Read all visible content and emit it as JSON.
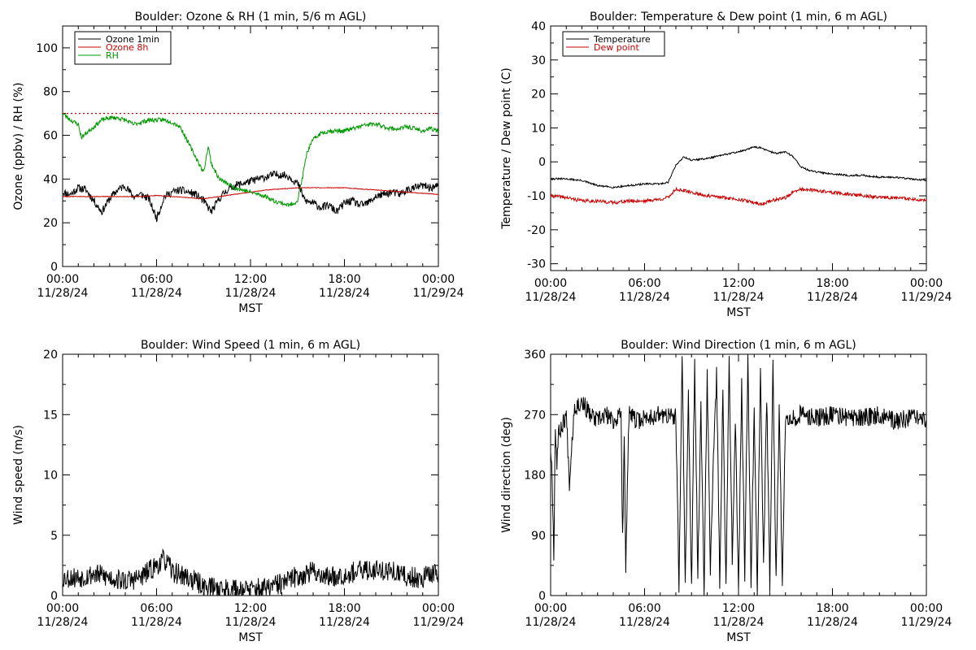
{
  "chart_data": [
    {
      "type": "line",
      "title": "Boulder: Ozone & RH (1 min, 5/6 m AGL)",
      "xlabel": "MST",
      "ylabel": "Ozone (ppbv) / RH (%)",
      "xlim": [
        0,
        24
      ],
      "ylim": [
        0,
        110
      ],
      "yticks": [
        0,
        20,
        40,
        60,
        80,
        100
      ],
      "xtick_labels": [
        [
          "00:00",
          "11/28/24"
        ],
        [
          "06:00",
          "11/28/24"
        ],
        [
          "12:00",
          "11/28/24"
        ],
        [
          "18:00",
          "11/28/24"
        ],
        [
          "00:00",
          "11/29/24"
        ]
      ],
      "legend_position": "top-left",
      "reference_lines": [
        {
          "y": 70,
          "color": "#cc0000",
          "style": "dotted"
        }
      ],
      "series": [
        {
          "name": "Ozone 1min",
          "color": "#000000",
          "noise": 1.8,
          "seed": 11,
          "x": [
            0,
            0.5,
            1,
            1.5,
            2,
            2.5,
            3,
            3.5,
            4,
            4.5,
            5,
            5.5,
            6,
            6.5,
            7,
            7.5,
            8,
            8.5,
            9,
            9.5,
            10,
            10.5,
            11,
            11.5,
            12,
            12.5,
            13,
            13.5,
            14,
            14.5,
            15,
            15.5,
            16,
            16.5,
            17,
            17.5,
            18,
            18.5,
            19,
            19.5,
            20,
            20.5,
            21,
            21.5,
            22,
            22.5,
            23,
            23.5,
            24
          ],
          "y": [
            34,
            33,
            36,
            35,
            30,
            25,
            31,
            35,
            37,
            32,
            33,
            31,
            22,
            32,
            34,
            35,
            34,
            33,
            30,
            25,
            31,
            35,
            37,
            38,
            39,
            40,
            41,
            42,
            42,
            41,
            38,
            30,
            29,
            27,
            28,
            25,
            29,
            30,
            28,
            29,
            32,
            33,
            34,
            33,
            35,
            36,
            37,
            36,
            37
          ]
        },
        {
          "name": "Ozone 8h",
          "color": "#cc0000",
          "noise": 0.15,
          "seed": 5,
          "x": [
            0,
            1,
            2,
            3,
            4,
            5,
            6,
            7,
            8,
            9,
            10,
            11,
            12,
            13,
            14,
            15,
            16,
            17,
            18,
            19,
            20,
            21,
            22,
            23,
            24
          ],
          "y": [
            32,
            32,
            32,
            32,
            32,
            32,
            32.5,
            32,
            31.5,
            31,
            32,
            33,
            34,
            35,
            35.5,
            36,
            36,
            36,
            36,
            35.5,
            35,
            34.5,
            34,
            33.5,
            33
          ]
        },
        {
          "name": "RH",
          "color": "#009900",
          "noise": 1.0,
          "seed": 23,
          "x": [
            0,
            0.5,
            1,
            1.2,
            1.5,
            2,
            2.5,
            3,
            3.5,
            4,
            4.5,
            5,
            5.5,
            6,
            6.5,
            7,
            7.5,
            8,
            8.5,
            9,
            9.3,
            9.5,
            10,
            10.5,
            11,
            11.5,
            12,
            12.5,
            13,
            13.5,
            14,
            14.5,
            15,
            15.3,
            15.6,
            16,
            16.5,
            17,
            17.5,
            18,
            18.5,
            19,
            19.5,
            20,
            20.5,
            21,
            21.5,
            22,
            22.5,
            23,
            23.5,
            24
          ],
          "y": [
            70,
            67,
            65,
            59,
            61,
            64,
            67,
            68,
            68,
            67,
            65,
            66,
            67,
            67,
            67,
            66,
            64,
            57,
            50,
            43,
            55,
            47,
            40,
            38,
            36,
            35,
            34,
            33,
            32,
            30,
            29,
            28,
            30,
            40,
            52,
            58,
            61,
            62,
            62,
            62,
            63,
            64,
            65,
            65,
            64,
            63,
            63,
            64,
            63,
            62,
            63,
            62
          ]
        }
      ]
    },
    {
      "type": "line",
      "title": "Boulder: Temperature & Dew point (1 min, 6 m AGL)",
      "xlabel": "MST",
      "ylabel": "Temperature / Dew point (C)",
      "xlim": [
        0,
        24
      ],
      "ylim": [
        -32,
        40
      ],
      "yticks": [
        -30,
        -20,
        -10,
        0,
        10,
        20,
        30,
        40
      ],
      "xtick_labels": [
        [
          "00:00",
          "11/28/24"
        ],
        [
          "06:00",
          "11/28/24"
        ],
        [
          "12:00",
          "11/28/24"
        ],
        [
          "18:00",
          "11/28/24"
        ],
        [
          "00:00",
          "11/29/24"
        ]
      ],
      "legend_position": "top-left",
      "series": [
        {
          "name": "Temperature",
          "color": "#000000",
          "noise": 0.25,
          "seed": 31,
          "x": [
            0,
            1,
            2,
            3,
            4,
            5,
            6,
            7,
            7.5,
            8,
            8.5,
            9,
            10,
            11,
            12,
            12.5,
            13,
            13.5,
            14,
            14.5,
            15,
            15.5,
            16,
            16.5,
            17,
            18,
            19,
            20,
            21,
            22,
            23,
            24
          ],
          "y": [
            -5,
            -5,
            -5.5,
            -7,
            -7.5,
            -7,
            -6.5,
            -6.5,
            -6,
            -1,
            1.5,
            0.5,
            1,
            2,
            3,
            3.5,
            4.5,
            4,
            3,
            2.5,
            3,
            1.5,
            -1.5,
            -2.5,
            -3,
            -3.5,
            -4,
            -4,
            -4.5,
            -4.5,
            -5,
            -5.5
          ]
        },
        {
          "name": "Dew point",
          "color": "#cc0000",
          "noise": 0.5,
          "seed": 41,
          "x": [
            0,
            1,
            2,
            3,
            4,
            5,
            6,
            7,
            7.5,
            8,
            8.5,
            9,
            10,
            11,
            12,
            13,
            13.5,
            14,
            14.5,
            15,
            15.5,
            16,
            17,
            18,
            19,
            20,
            21,
            22,
            23,
            24
          ],
          "y": [
            -10,
            -10.5,
            -11.5,
            -11.5,
            -12,
            -11.5,
            -11.5,
            -11,
            -10.5,
            -8,
            -8.5,
            -9,
            -10,
            -10.5,
            -11,
            -12,
            -12.5,
            -11.5,
            -11,
            -10.5,
            -9,
            -8,
            -8.5,
            -9,
            -9.5,
            -10,
            -10.5,
            -10.5,
            -11,
            -11.5
          ]
        }
      ]
    },
    {
      "type": "line",
      "title": "Boulder: Wind Speed (1 min, 6 m AGL)",
      "xlabel": "MST",
      "ylabel": "Wind speed (m/s)",
      "xlim": [
        0,
        24
      ],
      "ylim": [
        0,
        20
      ],
      "yticks": [
        0,
        5,
        10,
        15,
        20
      ],
      "xtick_labels": [
        [
          "00:00",
          "11/28/24"
        ],
        [
          "06:00",
          "11/28/24"
        ],
        [
          "12:00",
          "11/28/24"
        ],
        [
          "18:00",
          "11/28/24"
        ],
        [
          "00:00",
          "11/29/24"
        ]
      ],
      "series": [
        {
          "name": "",
          "color": "#000000",
          "noise": 0.9,
          "seed": 53,
          "min": 0,
          "x": [
            0,
            1,
            2,
            3,
            4,
            5,
            6,
            6.5,
            7,
            8,
            9,
            10,
            11,
            12,
            13,
            14,
            15,
            16,
            17,
            18,
            19,
            20,
            21,
            22,
            23,
            24
          ],
          "y": [
            1.5,
            1.5,
            1.8,
            1.5,
            1.2,
            1.5,
            2.5,
            3,
            2,
            1.5,
            0.8,
            0.6,
            0.5,
            0.5,
            0.6,
            1,
            1.6,
            2,
            1.5,
            1.8,
            2,
            2.2,
            2,
            1.5,
            1.5,
            2
          ]
        }
      ]
    },
    {
      "type": "line",
      "title": "Boulder: Wind Direction (1 min, 6 m AGL)",
      "xlabel": "MST",
      "ylabel": "Wind direction (deg)",
      "xlim": [
        0,
        24
      ],
      "ylim": [
        0,
        360
      ],
      "yticks": [
        0,
        90,
        180,
        270,
        360
      ],
      "xtick_labels": [
        [
          "00:00",
          "11/28/24"
        ],
        [
          "06:00",
          "11/28/24"
        ],
        [
          "12:00",
          "11/28/24"
        ],
        [
          "18:00",
          "11/28/24"
        ],
        [
          "00:00",
          "11/29/24"
        ]
      ],
      "series": [
        {
          "name": "",
          "color": "#000000",
          "noise": 14,
          "seed": 67,
          "min": 0,
          "max": 360,
          "x": [
            0,
            0.1,
            0.2,
            0.3,
            0.4,
            0.5,
            1,
            1.2,
            1.5,
            2,
            2.5,
            3,
            3.5,
            4,
            4.5,
            4.6,
            4.7,
            4.8,
            5,
            5.5,
            6,
            7,
            8,
            8.2,
            8.4,
            8.6,
            8.8,
            9,
            9.2,
            9.4,
            9.6,
            9.8,
            10,
            10.2,
            10.4,
            10.6,
            10.8,
            11,
            11.2,
            11.4,
            11.6,
            11.8,
            12,
            12.2,
            12.4,
            12.6,
            12.8,
            13,
            13.2,
            13.4,
            13.6,
            13.8,
            14,
            14.2,
            14.4,
            14.6,
            14.8,
            15,
            15.5,
            16,
            17,
            18,
            19,
            20,
            21,
            22,
            23,
            24
          ],
          "y": [
            220,
            180,
            60,
            250,
            200,
            240,
            270,
            170,
            280,
            290,
            270,
            260,
            270,
            260,
            270,
            80,
            250,
            40,
            270,
            260,
            265,
            270,
            265,
            10,
            360,
            20,
            300,
            5,
            350,
            30,
            280,
            10,
            340,
            40,
            200,
            330,
            20,
            300,
            10,
            360,
            50,
            270,
            5,
            320,
            30,
            360,
            20,
            280,
            10,
            350,
            40,
            300,
            15,
            340,
            20,
            280,
            10,
            270,
            265,
            270,
            265,
            270,
            265,
            265,
            270,
            260,
            265,
            260
          ]
        }
      ]
    }
  ]
}
